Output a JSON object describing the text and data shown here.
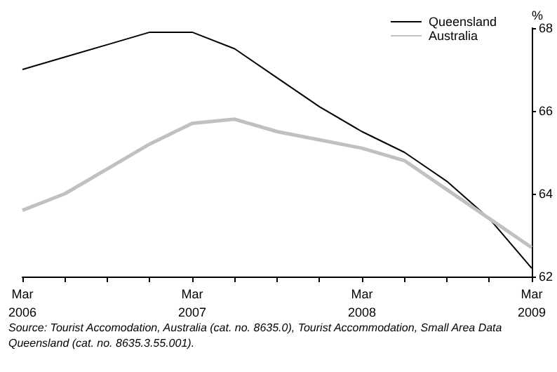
{
  "chart_data": {
    "type": "line",
    "ylabel": "%",
    "categories": [
      "Mar\n2006",
      null,
      null,
      null,
      "Mar\n2007",
      null,
      null,
      null,
      "Mar\n2008",
      null,
      null,
      null,
      "Mar\n2009"
    ],
    "series": [
      {
        "name": "Queensland",
        "color": "#000000",
        "values": [
          67.0,
          67.3,
          67.6,
          67.9,
          67.9,
          67.5,
          66.8,
          66.1,
          65.5,
          65.0,
          64.3,
          63.4,
          62.2
        ]
      },
      {
        "name": "Australia",
        "color": "#c0c0c0",
        "values": [
          63.6,
          64.0,
          64.6,
          65.2,
          65.7,
          65.8,
          65.5,
          65.3,
          65.1,
          64.8,
          64.1,
          63.4,
          62.7
        ]
      }
    ],
    "ylim": [
      62,
      68
    ],
    "yticks": [
      62,
      64,
      66,
      68
    ],
    "grid": false,
    "legend": "top right",
    "marker": "none",
    "line_style": "solid",
    "annotations": [
      "Source: Tourist Accomodation, Australia (cat. no. 8635.0), Tourist Accommodation, Small Area Data Queensland (cat. no. 8635.3.55.001)."
    ]
  }
}
